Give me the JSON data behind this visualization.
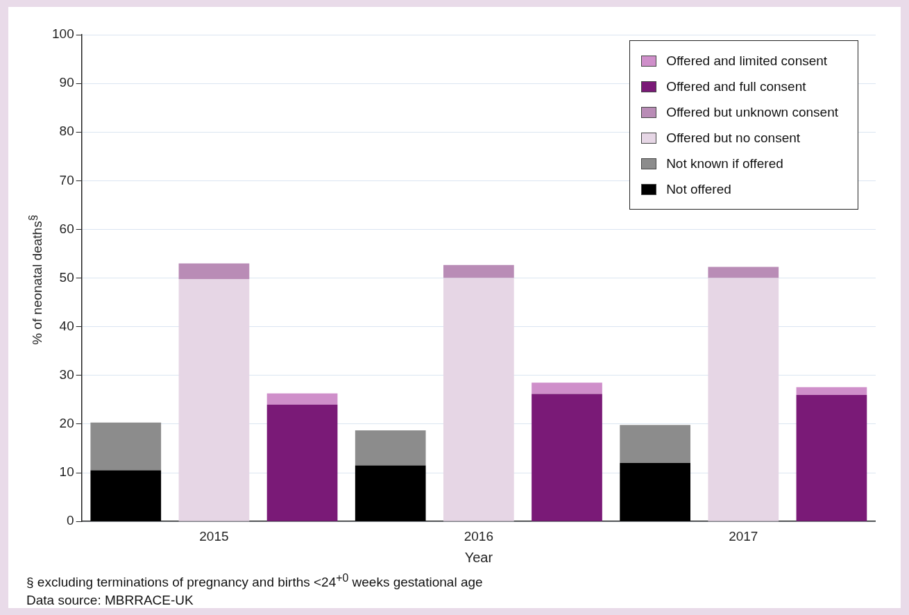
{
  "chart_data": {
    "type": "bar",
    "stacked": true,
    "xlabel": "Year",
    "ylabel": "% of neonatal deaths$^{§}$",
    "categories": [
      null,
      "2015",
      null,
      null,
      "2016",
      null,
      null,
      "2017",
      null
    ],
    "series": [
      {
        "name": "Not offered",
        "color": "#000000",
        "values": [
          10.5,
          null,
          null,
          11.5,
          null,
          null,
          12,
          null,
          null
        ]
      },
      {
        "name": "Not known if offered",
        "color": "#8c8c8c",
        "values": [
          9.8,
          null,
          null,
          7.2,
          null,
          null,
          7.8,
          null,
          null
        ]
      },
      {
        "name": "Offered but no consent",
        "color": "#e6d6e5",
        "values": [
          null,
          49.8,
          null,
          null,
          50,
          null,
          null,
          50,
          null
        ]
      },
      {
        "name": "Offered but unknown consent",
        "color": "#b98cb6",
        "values": [
          null,
          3.2,
          null,
          null,
          2.7,
          null,
          null,
          2.3,
          null
        ]
      },
      {
        "name": "Offered and full consent",
        "color": "#7a1a77",
        "values": [
          null,
          null,
          24,
          null,
          null,
          26.2,
          null,
          null,
          26
        ]
      },
      {
        "name": "Offered and limited consent",
        "color": "#cf8fca",
        "values": [
          null,
          null,
          2.3,
          null,
          null,
          2.3,
          null,
          null,
          1.6
        ]
      }
    ],
    "ylim": [
      0,
      100
    ],
    "yticks": [
      0,
      10,
      20,
      30,
      40,
      50,
      60,
      70,
      80,
      90,
      100
    ],
    "grid": "y",
    "legend": "top right",
    "annotations": [
      "§ excluding terminations of pregnancy and births <24$^{+0}$ weeks gestational age",
      "Data source: MBRRACE-UK"
    ]
  }
}
